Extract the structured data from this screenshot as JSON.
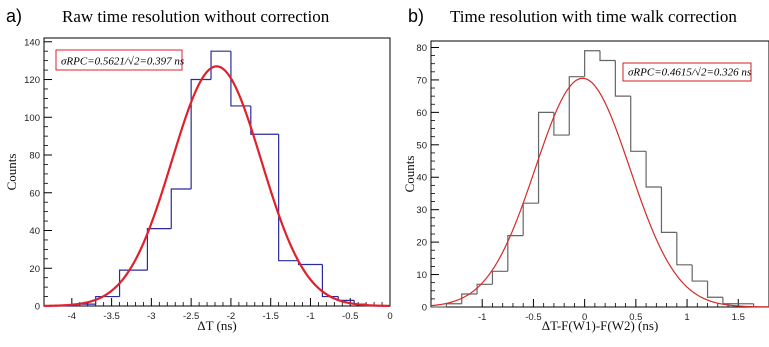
{
  "panels": [
    {
      "label": "a)",
      "title": "Raw time resolution without correction",
      "annotation": "σRPC=0.5621/√2=0.397 ns",
      "colors": {
        "hist": "#2b2b9a",
        "fit": "#e0202a",
        "box": "#e0202a"
      }
    },
    {
      "label": "b)",
      "title": "Time resolution with time walk correction",
      "annotation": "σRPC=0.4615/√2=0.326 ns",
      "colors": {
        "hist": "#666666",
        "fit": "#d42a2a",
        "box": "#cc2222"
      }
    }
  ],
  "chart_data": [
    {
      "type": "bar",
      "histogram": true,
      "title": "Raw time resolution without correction",
      "xlabel": "ΔT (ns)",
      "ylabel": "Counts",
      "xlim": [
        -4.35,
        0.0
      ],
      "ylim": [
        0,
        142
      ],
      "xticks": [
        -4,
        -3.5,
        -3,
        -2.5,
        -2,
        -1.5,
        -1,
        -0.5,
        0
      ],
      "yticks": [
        0,
        20,
        40,
        60,
        80,
        100,
        120,
        140
      ],
      "bin_edges": [
        -4.35,
        -3.95,
        -3.7,
        -3.4,
        -3.05,
        -2.75,
        -2.5,
        -2.25,
        -2.0,
        -1.75,
        -1.4,
        -1.15,
        -0.85,
        -0.65,
        -0.45,
        -0.3,
        0.0
      ],
      "values": [
        0,
        1,
        5,
        19,
        41,
        62,
        120,
        135,
        106,
        91,
        24,
        22,
        5,
        3,
        1,
        0
      ],
      "fit": {
        "kind": "gaussian",
        "mean": -2.18,
        "sigma": 0.5621,
        "amplitude": 127
      },
      "annotation": "σRPC=0.5621/√2=0.397 ns"
    },
    {
      "type": "bar",
      "histogram": true,
      "title": "Time resolution with time walk correction",
      "xlabel": "ΔT-F(W1)-F(W2) (ns)",
      "ylabel": "Counts",
      "xlim": [
        -1.5,
        1.8
      ],
      "ylim": [
        0,
        82
      ],
      "xticks": [
        -1,
        -0.5,
        0,
        0.5,
        1,
        1.5
      ],
      "yticks": [
        0,
        10,
        20,
        30,
        40,
        50,
        60,
        70,
        80
      ],
      "bin_edges": [
        -1.5,
        -1.35,
        -1.2,
        -1.05,
        -0.9,
        -0.75,
        -0.6,
        -0.45,
        -0.3,
        -0.15,
        0.0,
        0.15,
        0.3,
        0.45,
        0.6,
        0.75,
        0.9,
        1.05,
        1.2,
        1.35,
        1.5,
        1.65,
        1.8
      ],
      "values": [
        0,
        1,
        4,
        7,
        11,
        22,
        32,
        60,
        53,
        71,
        79,
        76,
        65,
        48,
        37,
        23,
        13,
        8,
        3,
        1,
        1,
        0
      ],
      "fit": {
        "kind": "gaussian",
        "mean": -0.02,
        "sigma": 0.4615,
        "amplitude": 70.5
      },
      "annotation": "σRPC=0.4615/√2=0.326 ns"
    }
  ]
}
